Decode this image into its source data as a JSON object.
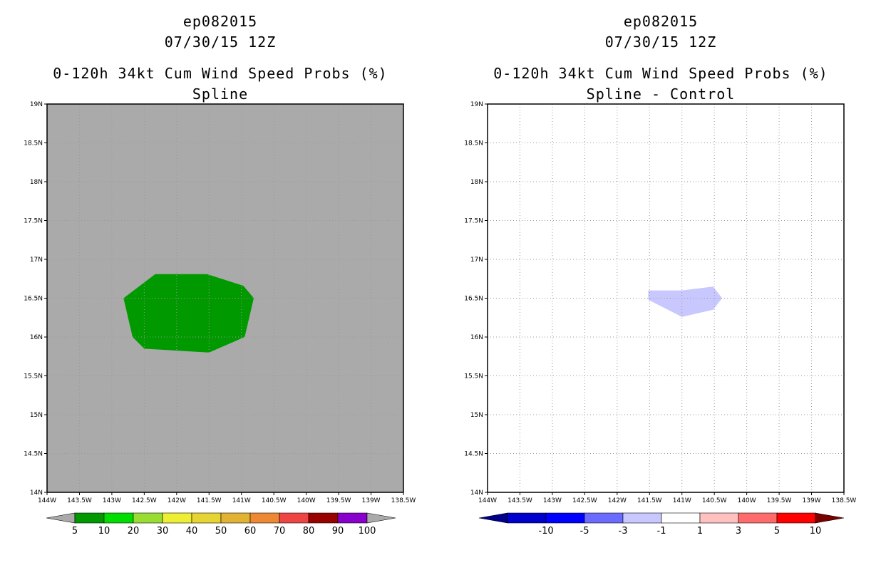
{
  "chart_data": [
    {
      "type": "heatmap",
      "title_lines": [
        "ep082015",
        "07/30/15 12Z",
        "0-120h 34kt Cum Wind Speed Probs (%)",
        "Spline"
      ],
      "xlabels": [
        "144W",
        "143.5W",
        "143W",
        "142.5W",
        "142W",
        "141.5W",
        "141W",
        "140.5W",
        "140W",
        "139.5W",
        "139W",
        "138.5W"
      ],
      "ylabels": [
        "14N",
        "14.5N",
        "15N",
        "15.5N",
        "16N",
        "16.5N",
        "17N",
        "17.5N",
        "18N",
        "18.5N",
        "19N"
      ],
      "xlim": [
        -144,
        -138.5
      ],
      "ylim": [
        14,
        19
      ],
      "background_color": "#aaaaaa",
      "grid": true,
      "regions": [
        {
          "name": "5-10%",
          "color": "#009900",
          "polygon_lonlat": [
            [
              -142.33,
              16.81
            ],
            [
              -142.12,
              16.81
            ],
            [
              -141.53,
              16.81
            ],
            [
              -140.97,
              16.66
            ],
            [
              -140.81,
              16.5
            ],
            [
              -140.95,
              16.0
            ],
            [
              -141.5,
              15.8
            ],
            [
              -142.5,
              15.85
            ],
            [
              -142.68,
              16.0
            ],
            [
              -142.82,
              16.5
            ]
          ]
        }
      ],
      "colorbar": {
        "labels": [
          "5",
          "10",
          "20",
          "30",
          "40",
          "50",
          "60",
          "70",
          "80",
          "90",
          "100"
        ],
        "colors": [
          "#009900",
          "#00dd00",
          "#99dd33",
          "#eeee33",
          "#e6d433",
          "#e2b233",
          "#ee8833",
          "#ee4444",
          "#990000",
          "#8800cc"
        ],
        "under_color": "#aaaaaa",
        "over_color": "#aaaaaa"
      }
    },
    {
      "type": "heatmap",
      "title_lines": [
        "ep082015",
        "07/30/15 12Z",
        "0-120h 34kt Cum Wind Speed Probs (%)",
        "Spline - Control"
      ],
      "xlabels": [
        "144W",
        "143.5W",
        "143W",
        "142.5W",
        "142W",
        "141.5W",
        "141W",
        "140.5W",
        "140W",
        "139.5W",
        "139W",
        "138.5W"
      ],
      "ylabels": [
        "14N",
        "14.5N",
        "15N",
        "15.5N",
        "16N",
        "16.5N",
        "17N",
        "17.5N",
        "18N",
        "18.5N",
        "19N"
      ],
      "xlim": [
        -144,
        -138.5
      ],
      "ylim": [
        14,
        19
      ],
      "background_color": "#ffffff",
      "grid": true,
      "regions": [
        {
          "name": "-3 to -1",
          "color": "#c8c8ff",
          "polygon_lonlat": [
            [
              -141.52,
              16.6
            ],
            [
              -141.0,
              16.6
            ],
            [
              -140.52,
              16.65
            ],
            [
              -140.38,
              16.5
            ],
            [
              -140.52,
              16.35
            ],
            [
              -141.0,
              16.26
            ],
            [
              -141.52,
              16.48
            ]
          ]
        }
      ],
      "colorbar": {
        "labels": [
          "-10",
          "-5",
          "-3",
          "-1",
          "1",
          "3",
          "5",
          "10"
        ],
        "colors": [
          "#0000cc",
          "#0000ff",
          "#6b6bff",
          "#c8c8ff",
          "#ffffff",
          "#ffc0c0",
          "#ff6b6b",
          "#ff0000"
        ],
        "under_color": "#00008b",
        "over_color": "#7a0000"
      }
    }
  ]
}
